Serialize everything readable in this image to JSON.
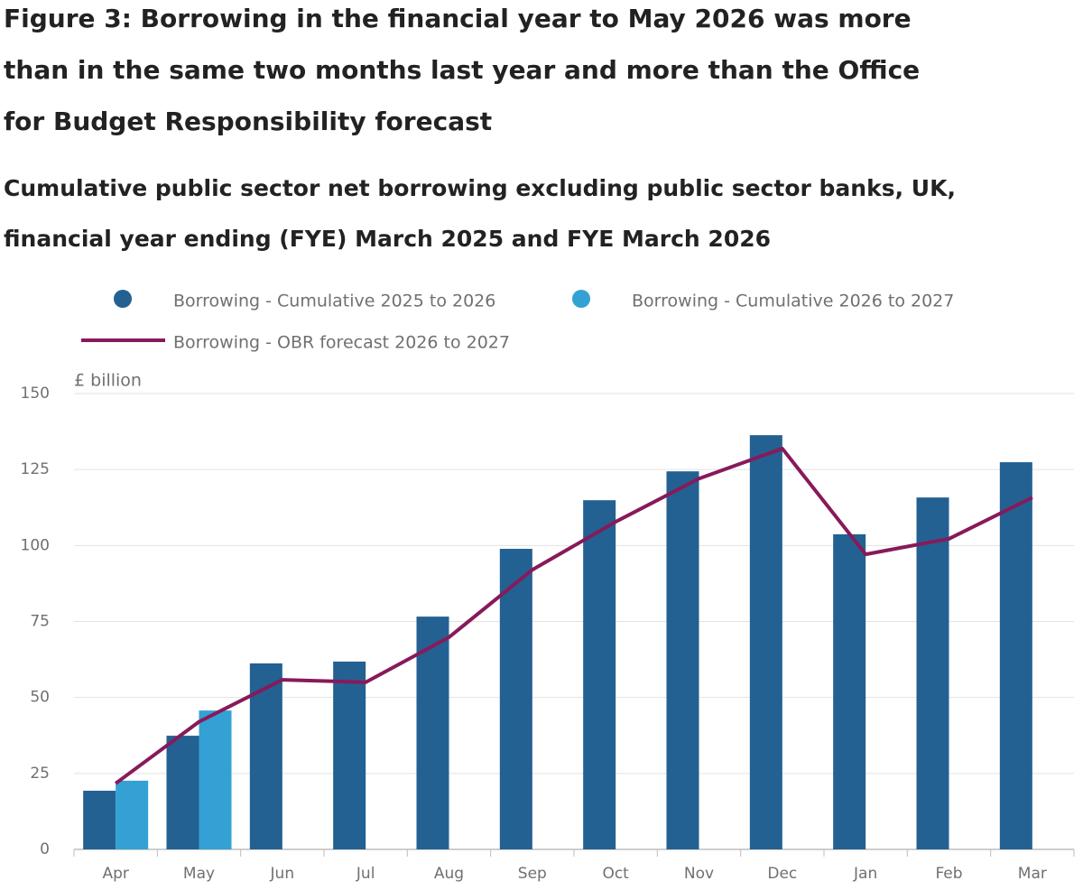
{
  "chart_data": {
    "type": "bar",
    "title": [
      "Figure 3: Borrowing in the financial year to May 2026 was more",
      "than in the same two months last year and more than the Office",
      "for Budget Responsibility forecast"
    ],
    "subtitle": [
      "Cumulative public sector net borrowing excluding public sector banks, UK,",
      "financial year ending (FYE) March 2025 and FYE March 2026"
    ],
    "y_label": "£ billion",
    "categories": [
      "Apr",
      "May",
      "Jun",
      "Jul",
      "Aug",
      "Sep",
      "Oct",
      "Nov",
      "Dec",
      "Jan",
      "Feb",
      "Mar"
    ],
    "series": [
      {
        "name": "Borrowing - Cumulative 2025 to 2026",
        "type": "bar",
        "color": "#236192",
        "values": [
          19.3,
          37.4,
          61.2,
          61.8,
          76.6,
          98.9,
          114.9,
          124.4,
          136.3,
          103.7,
          115.8,
          127.4
        ]
      },
      {
        "name": "Borrowing - Cumulative 2026 to 2027",
        "type": "bar",
        "color": "#33a1d4",
        "values": [
          22.6,
          45.7,
          null,
          null,
          null,
          null,
          null,
          null,
          null,
          null,
          null,
          null
        ]
      },
      {
        "name": "Borrowing - OBR forecast 2026 to 2027",
        "type": "line",
        "color": "#871a5b",
        "values": [
          21.7,
          42,
          55.8,
          55,
          69.8,
          92,
          107.8,
          122,
          131.9,
          97.1,
          102.2,
          115.8
        ]
      }
    ],
    "ylim": [
      0,
      150
    ],
    "yticks": [
      0,
      25,
      50,
      75,
      100,
      125,
      150
    ],
    "grid": true
  }
}
